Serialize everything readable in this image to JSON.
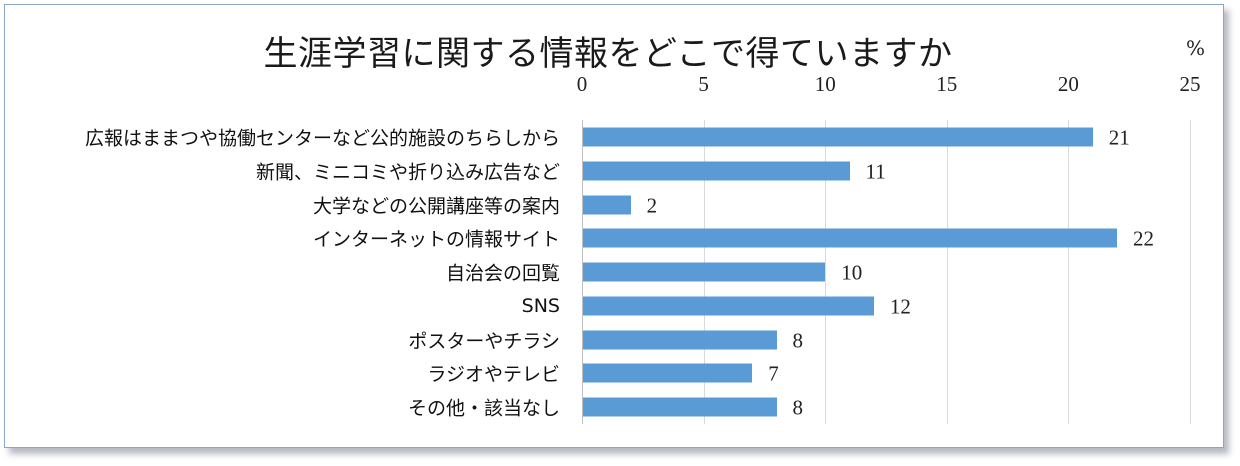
{
  "chart_data": {
    "type": "bar",
    "orientation": "horizontal",
    "title": "生涯学習に関する情報をどこで得ていますか",
    "unit_label": "%",
    "xlabel": "",
    "ylabel": "",
    "xlim": [
      0,
      25
    ],
    "x_ticks": [
      "0",
      "5",
      "10",
      "15",
      "20",
      "25"
    ],
    "x_axis_position": "top",
    "grid": true,
    "legend": null,
    "bar_color": "#5b9bd5",
    "categories": [
      "広報はままつや協働センターなど公的施設のちらしから",
      "新聞、ミニコミや折り込み広告など",
      "大学などの公開講座等の案内",
      "インターネットの情報サイト",
      "自治会の回覧",
      "SNS",
      "ポスターやチラシ",
      "ラジオやテレビ",
      "その他・該当なし"
    ],
    "values": [
      21,
      11,
      2,
      22,
      10,
      12,
      8,
      7,
      8
    ],
    "data_labels": [
      "21",
      "11",
      "2",
      "22",
      "10",
      "12",
      "8",
      "7",
      "8"
    ]
  }
}
